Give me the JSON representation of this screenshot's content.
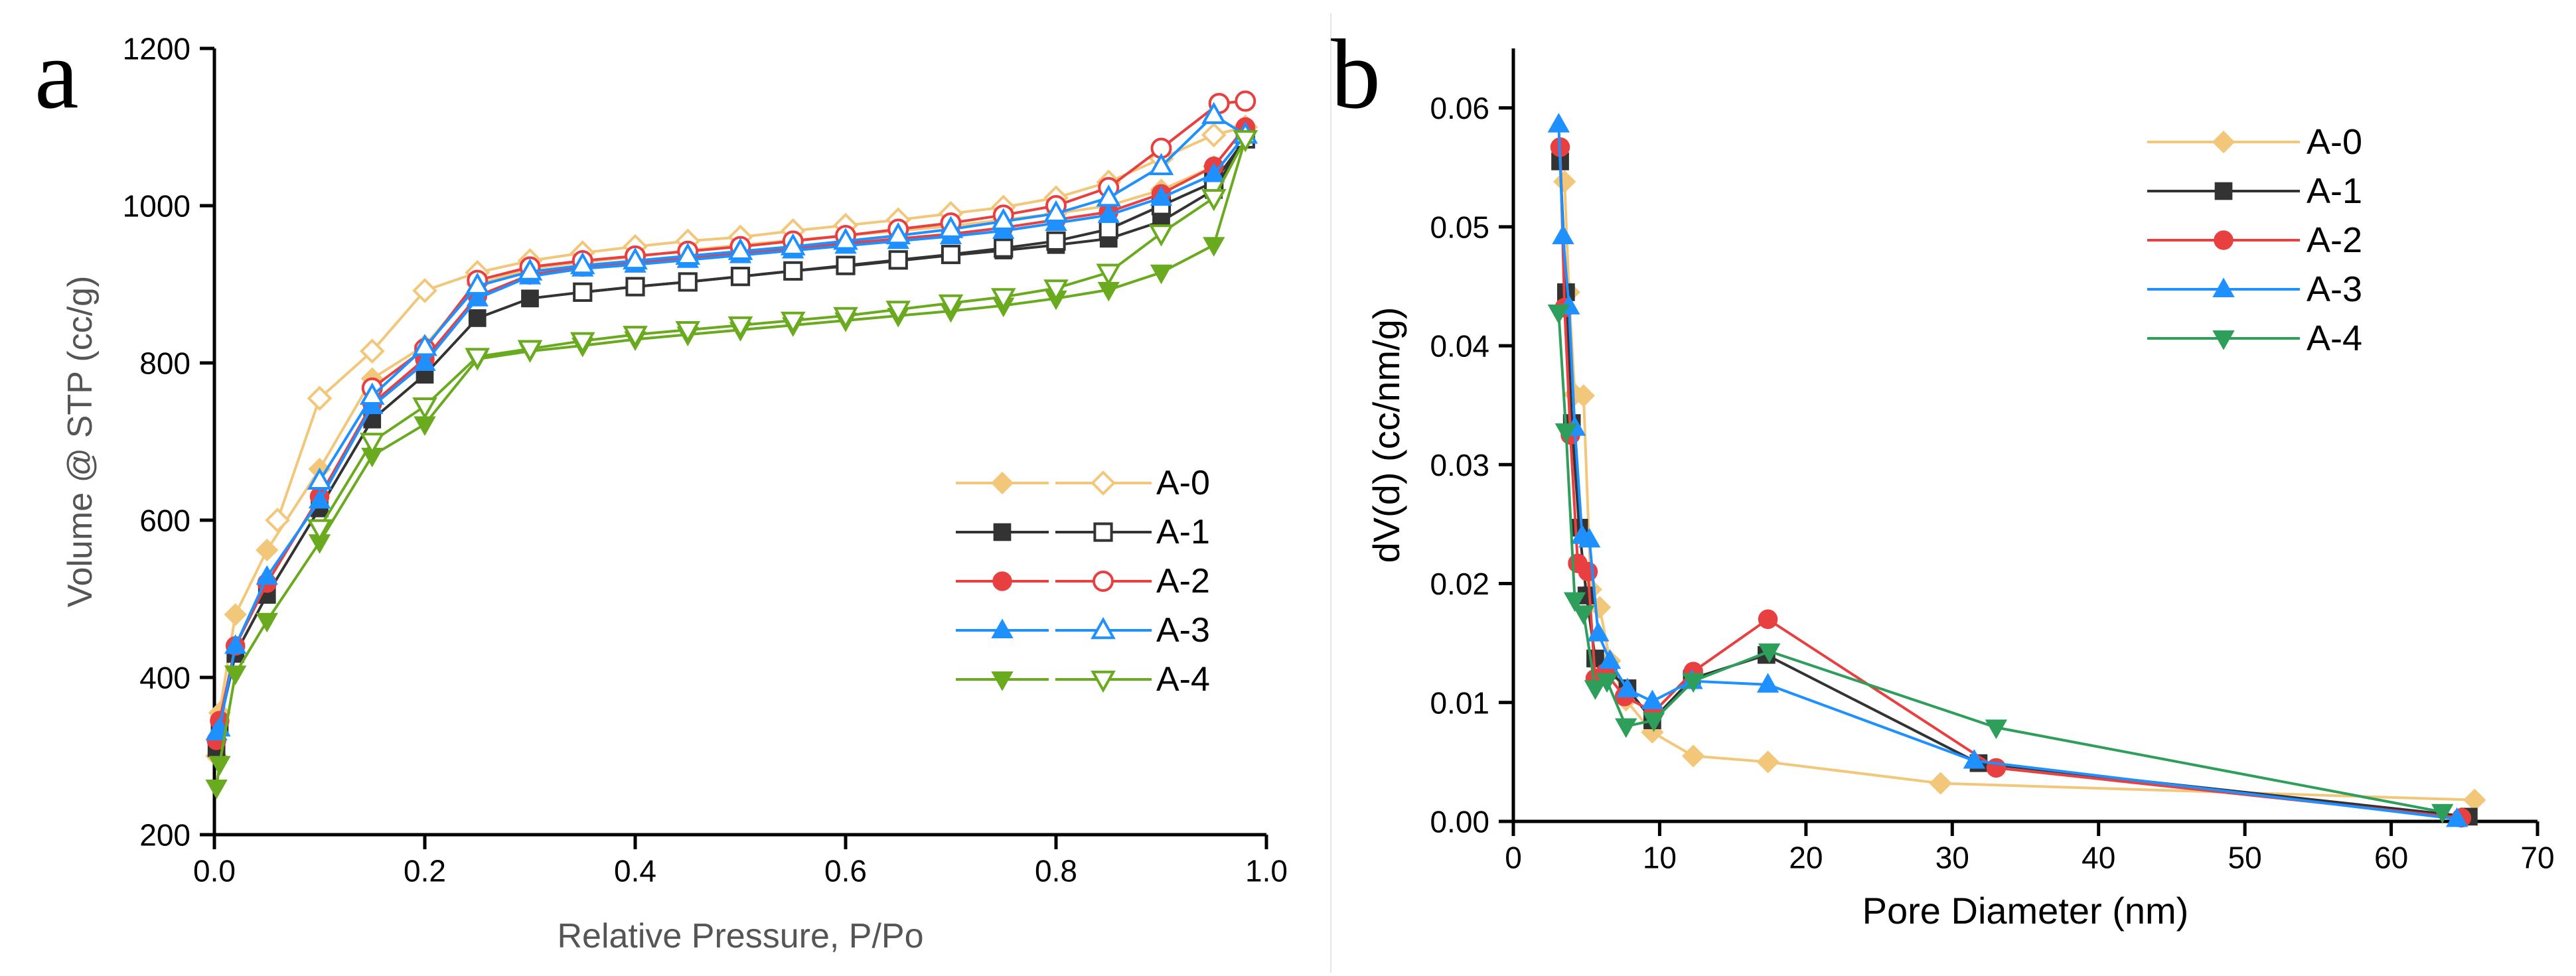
{
  "chart_data": [
    {
      "type": "line",
      "panel_label": "a",
      "xlabel": "Relative Pressure, P/Po",
      "ylabel": "Volume @ STP (cc/g)",
      "xlim": [
        0.0,
        1.0
      ],
      "ylim": [
        200,
        1200
      ],
      "xticks": [
        "0.0",
        "0.2",
        "0.4",
        "0.6",
        "0.8",
        "1.0"
      ],
      "yticks": [
        "200",
        "400",
        "600",
        "800",
        "1000",
        "1200"
      ],
      "legend_position": "center-right",
      "series": [
        {
          "name": "A-0",
          "color": "#f2c77a",
          "adsorption": {
            "marker": "diamond",
            "x": [
              0.002,
              0.005,
              0.02,
              0.05,
              0.1,
              0.15,
              0.2,
              0.25,
              0.3,
              0.35,
              0.4,
              0.45,
              0.5,
              0.55,
              0.6,
              0.65,
              0.7,
              0.75,
              0.8,
              0.85,
              0.9,
              0.95,
              0.98
            ],
            "y": [
              300,
              355,
              480,
              562,
              665,
              780,
              822,
              900,
              920,
              928,
              935,
              943,
              950,
              956,
              962,
              968,
              974,
              982,
              990,
              1000,
              1020,
              1050,
              1100
            ]
          },
          "desorption": {
            "marker": "diamond-open",
            "x": [
              0.98,
              0.95,
              0.9,
              0.85,
              0.8,
              0.75,
              0.7,
              0.65,
              0.6,
              0.55,
              0.5,
              0.45,
              0.4,
              0.35,
              0.3,
              0.25,
              0.2,
              0.15,
              0.1,
              0.06
            ],
            "y": [
              1100,
              1090,
              1060,
              1030,
              1010,
              998,
              990,
              982,
              975,
              968,
              960,
              955,
              948,
              940,
              930,
              915,
              892,
              815,
              755,
              600
            ]
          }
        },
        {
          "name": "A-1",
          "color": "#333333",
          "adsorption": {
            "marker": "square",
            "x": [
              0.002,
              0.005,
              0.02,
              0.05,
              0.1,
              0.15,
              0.2,
              0.25,
              0.3,
              0.35,
              0.4,
              0.45,
              0.5,
              0.55,
              0.6,
              0.65,
              0.7,
              0.75,
              0.8,
              0.85,
              0.9,
              0.95,
              0.98
            ],
            "y": [
              310,
              340,
              430,
              505,
              615,
              728,
              785,
              857,
              882,
              890,
              897,
              903,
              910,
              917,
              923,
              930,
              937,
              943,
              950,
              958,
              980,
              1020,
              1085
            ]
          },
          "desorption": {
            "marker": "square-open",
            "x": [
              0.98,
              0.95,
              0.9,
              0.85,
              0.8,
              0.75,
              0.7,
              0.65,
              0.6,
              0.55,
              0.5,
              0.45,
              0.4,
              0.35
            ],
            "y": [
              1085,
              1030,
              1000,
              970,
              955,
              946,
              938,
              931,
              924,
              917,
              910,
              903,
              897,
              890
            ]
          }
        },
        {
          "name": "A-2",
          "color": "#e84040",
          "adsorption": {
            "marker": "circle",
            "x": [
              0.002,
              0.005,
              0.02,
              0.05,
              0.1,
              0.15,
              0.2,
              0.25,
              0.3,
              0.35,
              0.4,
              0.45,
              0.5,
              0.55,
              0.6,
              0.65,
              0.7,
              0.75,
              0.8,
              0.85,
              0.9,
              0.95,
              0.98
            ],
            "y": [
              320,
              345,
              440,
              520,
              630,
              748,
              805,
              885,
              912,
              922,
              928,
              934,
              940,
              946,
              952,
              958,
              964,
              972,
              982,
              992,
              1015,
              1050,
              1100
            ]
          },
          "desorption": {
            "marker": "circle-open",
            "x": [
              0.98,
              0.955,
              0.9,
              0.85,
              0.8,
              0.75,
              0.7,
              0.65,
              0.6,
              0.55,
              0.5,
              0.45,
              0.4,
              0.35,
              0.3,
              0.25,
              0.2,
              0.15
            ],
            "y": [
              1133,
              1130,
              1073,
              1023,
              1000,
              988,
              978,
              970,
              962,
              955,
              948,
              942,
              936,
              930,
              922,
              905,
              818,
              768
            ]
          }
        },
        {
          "name": "A-3",
          "color": "#1e90ff",
          "adsorption": {
            "marker": "triangle-up",
            "x": [
              0.002,
              0.005,
              0.02,
              0.05,
              0.1,
              0.15,
              0.2,
              0.25,
              0.3,
              0.35,
              0.4,
              0.45,
              0.5,
              0.55,
              0.6,
              0.65,
              0.7,
              0.75,
              0.8,
              0.85,
              0.9,
              0.95,
              0.98
            ],
            "y": [
              330,
              335,
              440,
              528,
              625,
              745,
              800,
              882,
              910,
              920,
              925,
              931,
              937,
              943,
              949,
              955,
              961,
              968,
              978,
              988,
              1010,
              1040,
              1090
            ]
          },
          "desorption": {
            "marker": "triangle-up-open",
            "x": [
              0.98,
              0.95,
              0.9,
              0.85,
              0.8,
              0.75,
              0.7,
              0.65,
              0.6,
              0.55,
              0.5,
              0.45,
              0.4,
              0.35,
              0.3,
              0.25,
              0.2,
              0.15,
              0.1
            ],
            "y": [
              1090,
              1115,
              1050,
              1010,
              990,
              980,
              970,
              962,
              955,
              948,
              942,
              936,
              930,
              924,
              916,
              898,
              820,
              758,
              650
            ]
          }
        },
        {
          "name": "A-4",
          "color": "#6aaa1e",
          "adsorption": {
            "marker": "triangle-down",
            "x": [
              0.002,
              0.005,
              0.02,
              0.05,
              0.1,
              0.15,
              0.2,
              0.25,
              0.3,
              0.35,
              0.4,
              0.45,
              0.5,
              0.55,
              0.6,
              0.65,
              0.7,
              0.75,
              0.8,
              0.85,
              0.9,
              0.95,
              0.98
            ],
            "y": [
              260,
              290,
              405,
              472,
              572,
              682,
              722,
              805,
              815,
              822,
              830,
              836,
              842,
              848,
              854,
              860,
              866,
              873,
              882,
              893,
              915,
              950,
              1085
            ]
          },
          "desorption": {
            "marker": "triangle-down-open",
            "x": [
              0.98,
              0.95,
              0.9,
              0.85,
              0.8,
              0.75,
              0.7,
              0.65,
              0.6,
              0.55,
              0.5,
              0.45,
              0.4,
              0.35,
              0.3,
              0.25,
              0.2,
              0.15,
              0.1
            ],
            "y": [
              1085,
              1010,
              965,
              915,
              895,
              884,
              876,
              868,
              860,
              854,
              848,
              842,
              836,
              828,
              818,
              808,
              745,
              700,
              590
            ]
          }
        }
      ]
    },
    {
      "type": "line",
      "panel_label": "b",
      "xlabel": "Pore Diameter (nm)",
      "ylabel": "dV(d) (cc/nm/g)",
      "xlim": [
        0,
        70
      ],
      "ylim": [
        0.0,
        0.065
      ],
      "xticks": [
        "0",
        "10",
        "20",
        "30",
        "40",
        "50",
        "60",
        "70"
      ],
      "yticks": [
        "0.00",
        "0.01",
        "0.02",
        "0.03",
        "0.04",
        "0.05",
        "0.06"
      ],
      "legend_position": "top-right",
      "series": [
        {
          "name": "A-0",
          "color": "#f2c77a",
          "marker": "diamond",
          "x": [
            3.5,
            3.8,
            4.2,
            4.8,
            5.3,
            5.9,
            6.6,
            7.7,
            9.5,
            12.3,
            17.4,
            29.2,
            65.7
          ],
          "y": [
            0.0538,
            0.0445,
            0.0359,
            0.0358,
            0.0195,
            0.018,
            0.0135,
            0.0102,
            0.0075,
            0.0055,
            0.005,
            0.0032,
            0.0018
          ]
        },
        {
          "name": "A-1",
          "color": "#333333",
          "marker": "square",
          "x": [
            3.2,
            3.6,
            4.0,
            4.5,
            5.0,
            5.6,
            6.5,
            7.8,
            9.5,
            12.2,
            17.3,
            31.8,
            65.3
          ],
          "y": [
            0.0555,
            0.0445,
            0.0335,
            0.0247,
            0.019,
            0.0137,
            0.0127,
            0.0112,
            0.0085,
            0.012,
            0.014,
            0.0049,
            0.0004
          ]
        },
        {
          "name": "A-2",
          "color": "#e84040",
          "marker": "circle",
          "x": [
            3.2,
            3.5,
            3.9,
            4.4,
            5.1,
            5.6,
            6.3,
            7.6,
            9.6,
            12.3,
            17.4,
            33.0,
            64.8
          ],
          "y": [
            0.0567,
            0.0432,
            0.0325,
            0.0217,
            0.021,
            0.012,
            0.0125,
            0.0105,
            0.0092,
            0.0126,
            0.017,
            0.0045,
            0.0003
          ]
        },
        {
          "name": "A-3",
          "color": "#1e90ff",
          "marker": "triangle-up",
          "x": [
            3.1,
            3.4,
            3.8,
            4.2,
            4.7,
            5.2,
            5.8,
            6.6,
            7.8,
            9.5,
            12.2,
            17.4,
            31.5,
            64.5
          ],
          "y": [
            0.0586,
            0.0492,
            0.0433,
            0.0331,
            0.024,
            0.0237,
            0.0158,
            0.0135,
            0.0111,
            0.0101,
            0.0118,
            0.0115,
            0.0051,
            0.0002
          ]
        },
        {
          "name": "A-4",
          "color": "#2e9e5b",
          "marker": "triangle-down",
          "x": [
            3.1,
            3.6,
            4.2,
            4.8,
            5.6,
            6.4,
            7.7,
            9.6,
            12.3,
            17.5,
            33.0,
            63.5
          ],
          "y": [
            0.0428,
            0.0328,
            0.0186,
            0.0175,
            0.0112,
            0.0118,
            0.008,
            0.0085,
            0.0118,
            0.0143,
            0.0079,
            0.0008
          ]
        }
      ]
    }
  ]
}
